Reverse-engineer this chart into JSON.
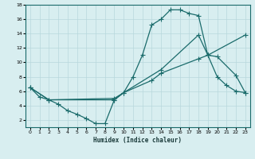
{
  "xlabel": "Humidex (Indice chaleur)",
  "bg_color": "#d8eef0",
  "grid_color": "#b8d8dc",
  "line_color": "#1a6b6b",
  "xlim": [
    -0.5,
    23.5
  ],
  "ylim": [
    1,
    18
  ],
  "xticks": [
    0,
    1,
    2,
    3,
    4,
    5,
    6,
    7,
    8,
    9,
    10,
    11,
    12,
    13,
    14,
    15,
    16,
    17,
    18,
    19,
    20,
    21,
    22,
    23
  ],
  "yticks": [
    2,
    4,
    6,
    8,
    10,
    12,
    14,
    16,
    18
  ],
  "line1_x": [
    0,
    1,
    2,
    3,
    4,
    5,
    6,
    7,
    8,
    9,
    10,
    11,
    12,
    13,
    14,
    15,
    16,
    17,
    18,
    19,
    20,
    21,
    22,
    23
  ],
  "line1_y": [
    6.5,
    5.2,
    4.8,
    4.2,
    3.3,
    2.8,
    2.2,
    1.5,
    1.5,
    4.8,
    5.8,
    8.0,
    11.0,
    15.2,
    16.0,
    17.3,
    17.3,
    16.8,
    16.5,
    11.0,
    8.0,
    6.8,
    6.0,
    5.8
  ],
  "line2_x": [
    0,
    2,
    9,
    10,
    13,
    14,
    18,
    19,
    20,
    22,
    23
  ],
  "line2_y": [
    6.5,
    4.8,
    4.8,
    5.8,
    7.5,
    8.5,
    10.5,
    11.0,
    10.8,
    8.2,
    5.8
  ],
  "line3_x": [
    0,
    2,
    9,
    14,
    18,
    19,
    23
  ],
  "line3_y": [
    6.5,
    4.8,
    5.0,
    9.0,
    13.8,
    11.0,
    13.8
  ]
}
